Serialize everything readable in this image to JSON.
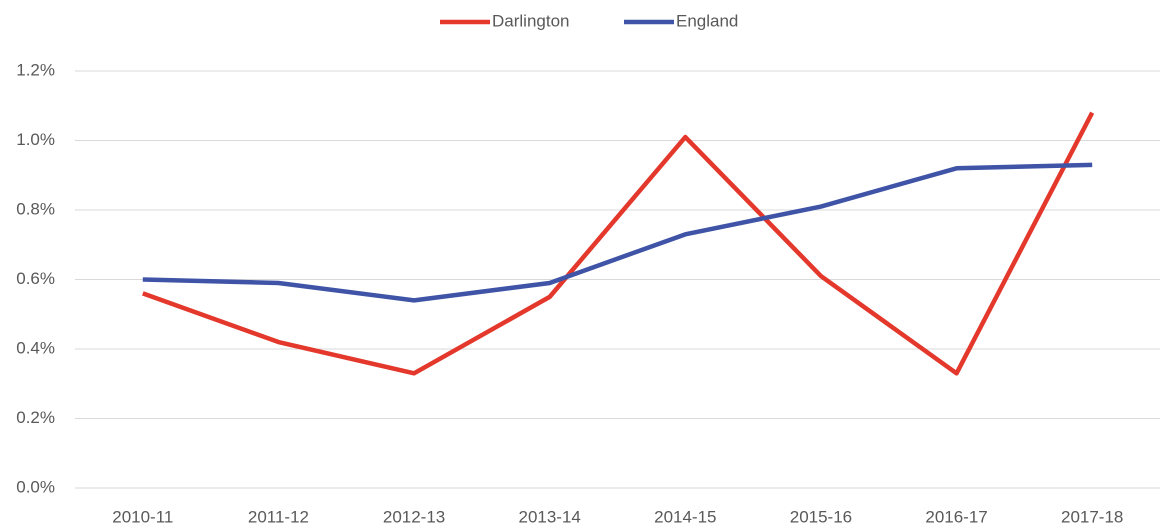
{
  "chart_data": {
    "type": "line",
    "categories": [
      "2010-11",
      "2011-12",
      "2012-13",
      "2013-14",
      "2014-15",
      "2015-16",
      "2016-17",
      "2017-18"
    ],
    "series": [
      {
        "name": "Darlington",
        "color": "#e3382b",
        "values": [
          0.56,
          0.42,
          0.33,
          0.55,
          1.01,
          0.61,
          0.33,
          1.08
        ]
      },
      {
        "name": "England",
        "color": "#3f54a6",
        "values": [
          0.6,
          0.59,
          0.54,
          0.59,
          0.73,
          0.81,
          0.92,
          0.93
        ]
      }
    ],
    "ylim": [
      0,
      1.2
    ],
    "yticks": [
      {
        "value": 0,
        "label": "0.0%"
      },
      {
        "value": 0.2,
        "label": "0.2%"
      },
      {
        "value": 0.4,
        "label": "0.4%"
      },
      {
        "value": 0.6,
        "label": "0.6%"
      },
      {
        "value": 0.8,
        "label": "0.8%"
      },
      {
        "value": 1.0,
        "label": "1.0%"
      },
      {
        "value": 1.2,
        "label": "1.2%"
      }
    ],
    "grid": true,
    "legend": "top"
  }
}
